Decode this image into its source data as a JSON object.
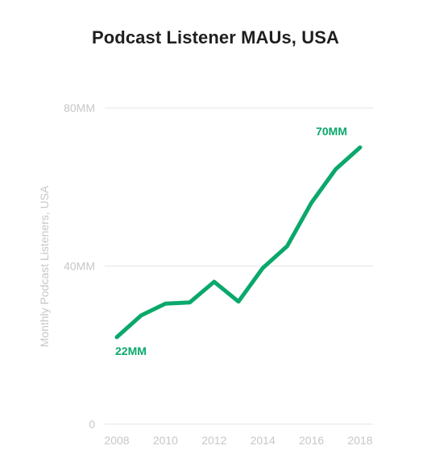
{
  "chart_data": {
    "type": "line",
    "title": "Podcast Listener MAUs, USA",
    "xlabel": "",
    "ylabel": "Monthly Podcast Listeners, USA",
    "x": [
      2008,
      2009,
      2010,
      2011,
      2012,
      2013,
      2014,
      2015,
      2016,
      2017,
      2018
    ],
    "series": [
      {
        "values": [
          22,
          27.5,
          30.5,
          30.8,
          36,
          31,
          39.5,
          45,
          56,
          64.5,
          70
        ]
      }
    ],
    "ylim": [
      0,
      80
    ],
    "yticks": [
      0,
      40,
      80
    ],
    "ytick_labels": [
      "0",
      "40MM",
      "80MM"
    ],
    "xlim": [
      2008,
      2018
    ],
    "xticks": [
      2008,
      2010,
      2012,
      2014,
      2016,
      2018
    ],
    "xtick_labels": [
      "2008",
      "2010",
      "2012",
      "2014",
      "2016",
      "2018"
    ],
    "annotations": [
      {
        "x": 2008,
        "y": 22,
        "text": "22MM"
      },
      {
        "x": 2018,
        "y": 70,
        "text": "70MM"
      }
    ],
    "grid": true,
    "line_color": "#0aa86b",
    "label_color": "#0aa86b",
    "grid_color": "#e6e6e6",
    "legend": "none"
  }
}
